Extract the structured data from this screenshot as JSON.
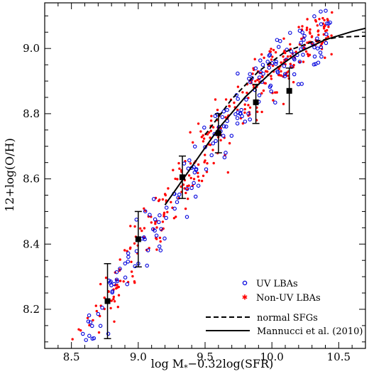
{
  "chart_data": {
    "type": "scatter",
    "xlabel_main": "log M",
    "xlabel_sub": "*",
    "xlabel_rest": "−0.32log(SFR)",
    "ylabel": "12+log(O/H)",
    "xlim": [
      8.3,
      10.7
    ],
    "ylim": [
      8.08,
      9.14
    ],
    "x_ticks": [
      8.5,
      9.0,
      9.5,
      10.0,
      10.5
    ],
    "x_tick_labels": [
      "8.5",
      "9.0",
      "9.5",
      "10.0",
      "10.5"
    ],
    "y_ticks": [
      8.2,
      8.4,
      8.6,
      8.8,
      9.0
    ],
    "y_tick_labels": [
      "8.2",
      "8.4",
      "8.6",
      "8.8",
      "9.0"
    ],
    "legend_position": "lower-right",
    "legend": {
      "uv": "UV LBAs",
      "nonuv": "Non-UV LBAs",
      "normal": "normal SFGs",
      "mannucci": "Mannucci et al. (2010)"
    },
    "colors": {
      "uv": "#0000dd",
      "nonuv": "#ff0000",
      "line": "#000000"
    },
    "binned_medians": [
      {
        "x": 8.77,
        "y": 8.225,
        "ylo": 8.11,
        "yhi": 8.34
      },
      {
        "x": 9.0,
        "y": 8.415,
        "ylo": 8.33,
        "yhi": 8.5
      },
      {
        "x": 9.33,
        "y": 8.605,
        "ylo": 8.54,
        "yhi": 8.67
      },
      {
        "x": 9.6,
        "y": 8.74,
        "ylo": 8.68,
        "yhi": 8.8
      },
      {
        "x": 9.88,
        "y": 8.835,
        "ylo": 8.77,
        "yhi": 8.89
      },
      {
        "x": 10.13,
        "y": 8.87,
        "ylo": 8.8,
        "yhi": 8.94
      }
    ],
    "mannucci_curve": {
      "x": [
        9.2,
        9.4,
        9.6,
        9.8,
        10.0,
        10.2,
        10.4,
        10.6,
        10.7
      ],
      "y": [
        8.52,
        8.637,
        8.754,
        8.851,
        8.929,
        8.988,
        9.027,
        9.052,
        9.062
      ]
    },
    "normal_sfgs_curve": {
      "x": [
        9.5,
        9.7,
        9.9,
        10.1,
        10.3,
        10.5,
        10.7
      ],
      "y": [
        8.735,
        8.845,
        8.93,
        8.99,
        9.02,
        9.035,
        9.038
      ]
    },
    "scatter_points_per_series": {
      "uv": 190,
      "nonuv": 380
    }
  }
}
